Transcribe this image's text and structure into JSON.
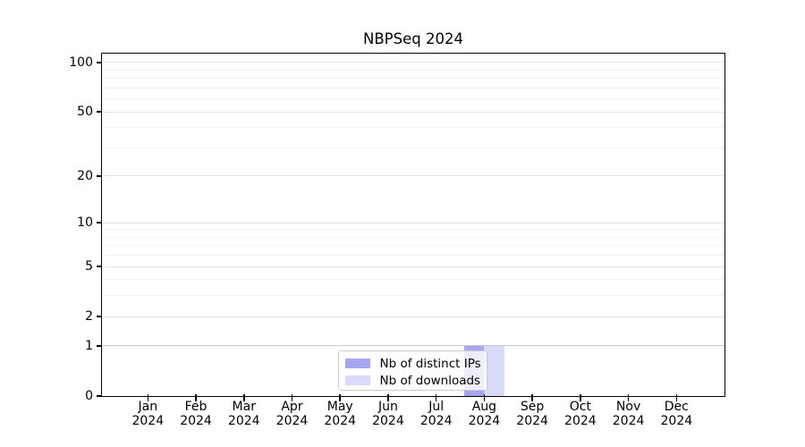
{
  "chart_data": {
    "type": "bar",
    "title": "NBPSeq 2024",
    "x_tick_labels": [
      [
        "Jan",
        "2024"
      ],
      [
        "Feb",
        "2024"
      ],
      [
        "Mar",
        "2024"
      ],
      [
        "Apr",
        "2024"
      ],
      [
        "May",
        "2024"
      ],
      [
        "Jun",
        "2024"
      ],
      [
        "Jul",
        "2024"
      ],
      [
        "Aug",
        "2024"
      ],
      [
        "Sep",
        "2024"
      ],
      [
        "Oct",
        "2024"
      ],
      [
        "Nov",
        "2024"
      ],
      [
        "Dec",
        "2024"
      ]
    ],
    "series": [
      {
        "name": "Nb of distinct IPs",
        "color": "#a6a6f2",
        "values": [
          0,
          0,
          0,
          0,
          0,
          0,
          0,
          1,
          0,
          0,
          0,
          0
        ]
      },
      {
        "name": "Nb of downloads",
        "color": "#d9d9f8",
        "values": [
          0,
          0,
          0,
          0,
          0,
          0,
          0,
          1,
          0,
          0,
          0,
          0
        ]
      }
    ],
    "yscale": "log1p",
    "ylim": [
      0,
      113.3
    ],
    "y_tick_values": [
      0,
      1,
      2,
      5,
      10,
      20,
      50,
      100
    ],
    "y_tick_labels": [
      "0",
      "1",
      "2",
      "5",
      "10",
      "20",
      "50",
      "100"
    ],
    "y_minor_gridlines": [
      3,
      4,
      6,
      7,
      8,
      9,
      30,
      40,
      60,
      70,
      80,
      90
    ],
    "grid": true,
    "legend_position": "lower center",
    "background": "#ffffff"
  }
}
